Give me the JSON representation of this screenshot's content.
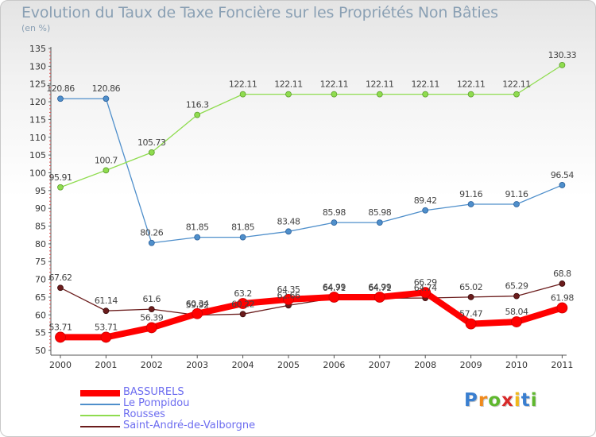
{
  "chart_data": {
    "type": "line",
    "title": "Evolution du Taux de Taxe Foncière sur les Propriétés Non Bâties",
    "ylabel": "(en %)",
    "xlabel": "",
    "ylim": [
      50,
      135
    ],
    "yticks": [
      50,
      55,
      60,
      65,
      70,
      75,
      80,
      85,
      90,
      95,
      100,
      105,
      110,
      115,
      120,
      125,
      130,
      135
    ],
    "categories": [
      "2000",
      "2001",
      "2002",
      "2003",
      "2004",
      "2005",
      "2006",
      "2007",
      "2008",
      "2009",
      "2010",
      "2011"
    ],
    "grid": false,
    "legend_position": "bottom-left",
    "series": [
      {
        "name": "BASSURELS",
        "color": "#ff0000",
        "values": [
          53.71,
          53.71,
          56.39,
          60.34,
          63.2,
          64.35,
          64.99,
          64.99,
          66.29,
          57.47,
          58.04,
          61.98
        ],
        "labels": [
          "53.71",
          "53.71",
          "56.39",
          "60.34",
          "63.2",
          "64.35",
          "64.99",
          "64.99",
          "66.29",
          "57.47",
          "58.04",
          "61.98"
        ]
      },
      {
        "name": "Le Pompidou",
        "color": "#4f8fcb",
        "values": [
          120.86,
          120.86,
          80.26,
          81.85,
          81.85,
          83.48,
          85.98,
          85.98,
          89.42,
          91.16,
          91.16,
          96.54
        ],
        "labels": [
          "120.86",
          "120.86",
          "80.26",
          "81.85",
          "81.85",
          "83.48",
          "85.98",
          "85.98",
          "89.42",
          "91.16",
          "91.16",
          "96.54"
        ]
      },
      {
        "name": "Rousses",
        "color": "#8fdc4f",
        "values": [
          95.91,
          100.7,
          105.73,
          116.3,
          122.11,
          122.11,
          122.11,
          122.11,
          122.11,
          122.11,
          122.11,
          130.33
        ],
        "labels": [
          "95.91",
          "100.7",
          "105.73",
          "116.3",
          "122.11",
          "122.11",
          "122.11",
          "122.11",
          "122.11",
          "122.11",
          "122.11",
          "130.33"
        ]
      },
      {
        "name": "Saint-André-de-Valborgne",
        "color": "#6b1c1c",
        "values": [
          67.62,
          61.14,
          61.6,
          59.92,
          60.22,
          62.66,
          64.71,
          64.71,
          64.74,
          65.02,
          65.29,
          68.8
        ],
        "labels": [
          "67.62",
          "61.14",
          "61.6",
          "59.92",
          "60.22",
          "62.66",
          "64.71",
          "64.71",
          "64.74",
          "65.02",
          "65.29",
          "68.8"
        ]
      }
    ]
  },
  "logo": {
    "letters": [
      "P",
      "r",
      "o",
      "x",
      "i",
      "t",
      "i"
    ],
    "colors": [
      "#3a7fd0",
      "#f08a1c",
      "#5fb82e",
      "#d82a2a",
      "#f0b81c",
      "#3a7fd0",
      "#5fb82e"
    ]
  }
}
